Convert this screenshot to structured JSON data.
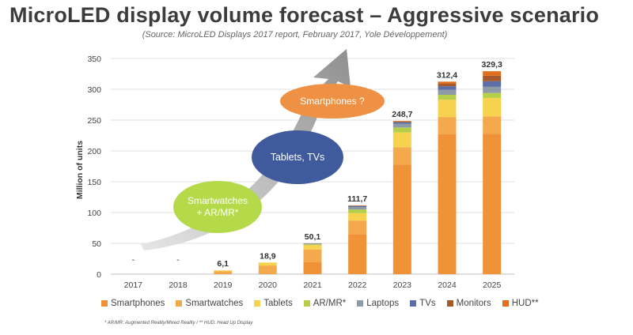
{
  "chart_data": {
    "type": "bar",
    "stacked": true,
    "title": "MicroLED display volume forecast – Aggressive scenario",
    "subtitle": "(Source: MicroLED Displays 2017 report, February 2017, Yole Développement)",
    "ylabel": "Million of units",
    "ylim": [
      0,
      350
    ],
    "yticks": [
      "0",
      "50",
      "100",
      "150",
      "200",
      "250",
      "300",
      "350"
    ],
    "categories": [
      "2017",
      "2018",
      "2019",
      "2020",
      "2021",
      "2022",
      "2023",
      "2024",
      "2025"
    ],
    "totals": [
      "-",
      "-",
      "6,1",
      "18,9",
      "50,1",
      "111,7",
      "248,7",
      "312,4",
      "329,3"
    ],
    "series": [
      {
        "name": "Smartphones",
        "color": "#ef9238",
        "values": [
          0,
          0,
          0,
          0,
          20,
          65,
          178,
          227,
          228
        ]
      },
      {
        "name": "Smartwatches",
        "color": "#f4aa4c",
        "values": [
          0,
          0,
          4.5,
          14,
          20,
          22,
          28,
          28,
          28
        ]
      },
      {
        "name": "Tablets",
        "color": "#f6d24e",
        "values": [
          0,
          0,
          1.6,
          4.9,
          7,
          12,
          24,
          28,
          30
        ]
      },
      {
        "name": "AR/MR*",
        "color": "#b6cf4a",
        "values": [
          0,
          0,
          0,
          0,
          1.5,
          6,
          8,
          8,
          8
        ]
      },
      {
        "name": "Laptops",
        "color": "#8f9aa8",
        "values": [
          0,
          0,
          0,
          0,
          1,
          4,
          6,
          8,
          10
        ]
      },
      {
        "name": "TVs",
        "color": "#5b6ea6",
        "values": [
          0,
          0,
          0,
          0,
          0.3,
          1.5,
          2.5,
          6,
          9
        ]
      },
      {
        "name": "Monitors",
        "color": "#a65a2c",
        "values": [
          0,
          0,
          0,
          0,
          0.2,
          0.8,
          1.2,
          4,
          9
        ]
      },
      {
        "name": "HUD**",
        "color": "#e06f1e",
        "values": [
          0,
          0,
          0,
          0,
          0.1,
          0.4,
          1,
          3.4,
          7.3
        ]
      }
    ]
  },
  "annotations": {
    "bubble1": [
      "Smartwatches",
      "+ AR/MR*"
    ],
    "bubble2": "Tablets, TVs",
    "bubble3": "Smartphones ?",
    "colors": {
      "bubble1": "#b4da4a",
      "bubble2": "#3f5b9e",
      "bubble3": "#ef9144",
      "arrow": "#a9a9a9"
    }
  },
  "footnote": "* AR/MR: Augmented Reality/Mixed Reality / ** HUD: Head Up Display"
}
